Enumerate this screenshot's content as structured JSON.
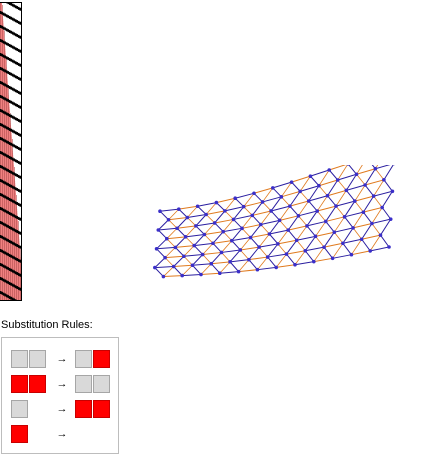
{
  "rules_title": "Substitution Rules:",
  "rules": [
    {
      "lhs": [
        "gray",
        "gray"
      ],
      "arrow": "→",
      "rhs": [
        "gray",
        "red"
      ]
    },
    {
      "lhs": [
        "red",
        "red"
      ],
      "arrow": "→",
      "rhs": [
        "gray",
        "gray"
      ]
    },
    {
      "lhs": [
        "gray"
      ],
      "arrow": "→",
      "rhs": [
        "red",
        "red"
      ]
    },
    {
      "lhs": [
        "red"
      ],
      "arrow": "→",
      "rhs": []
    }
  ],
  "colors": {
    "cell_gray": "#d9d9d9",
    "cell_red": "#ff0000",
    "strip_fill": "#f08080",
    "strip_marker": "#000000",
    "graph_edge_blue": "#2a1ea0",
    "graph_edge_orange": "#e07a1e",
    "graph_vertex": "#3b2fc9"
  }
}
